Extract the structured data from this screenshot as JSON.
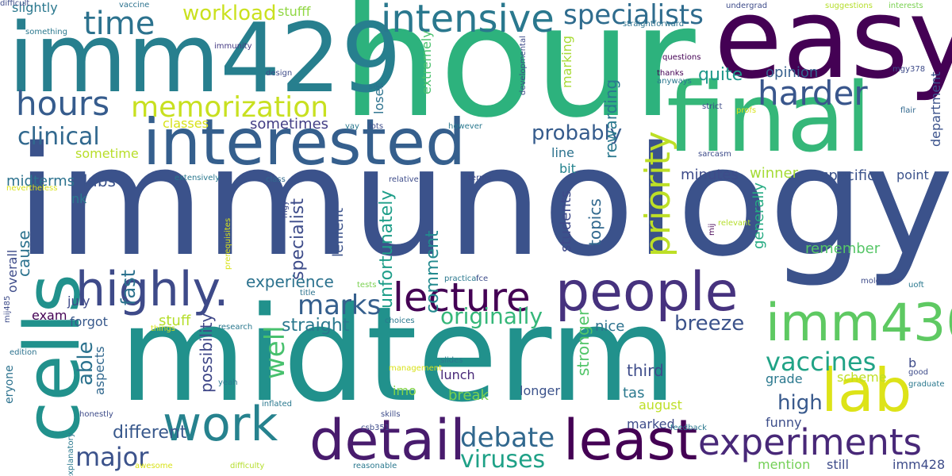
{
  "background": "#ffffff",
  "palette": {
    "dark_purple": "#440154",
    "indigo": "#46327e",
    "blue": "#365c8d",
    "steel_blue": "#3b528b",
    "teal_blue": "#277f8e",
    "teal": "#21918c",
    "sea_green": "#1fa187",
    "green": "#4ac16d",
    "light_green": "#a0da39",
    "yellow": "#d8e219"
  },
  "words": [
    {
      "text": "immunology",
      "color": "#3b528b"
    },
    {
      "text": "midterm",
      "color": "#21918c"
    },
    {
      "text": "hour",
      "color": "#2db27d"
    },
    {
      "text": "easy",
      "color": "#440154"
    },
    {
      "text": "final",
      "color": "#35b779"
    },
    {
      "text": "imm429",
      "color": "#277f8e"
    },
    {
      "text": "interested",
      "color": "#355f8d"
    },
    {
      "text": "cells",
      "color": "#21918c"
    },
    {
      "text": "lab",
      "color": "#dde318"
    },
    {
      "text": "people",
      "color": "#46327e"
    },
    {
      "text": "imm430",
      "color": "#5ec962"
    },
    {
      "text": "least",
      "color": "#440154"
    },
    {
      "text": "detail",
      "color": "#481b6d"
    },
    {
      "text": "highly.",
      "color": "#3e4a89"
    },
    {
      "text": "experiments",
      "color": "#482878"
    },
    {
      "text": "work",
      "color": "#26828e"
    },
    {
      "text": "lecture",
      "color": "#440154"
    },
    {
      "text": "intensive",
      "color": "#2a788e"
    },
    {
      "text": "hours",
      "color": "#365c8d"
    },
    {
      "text": "time",
      "color": "#2c728e"
    },
    {
      "text": "memorization",
      "color": "#c8e020"
    },
    {
      "text": "harder",
      "color": "#39568c"
    },
    {
      "text": "specialists",
      "color": "#2f6c8e"
    },
    {
      "text": "clinical",
      "color": "#31688e"
    },
    {
      "text": "priority",
      "color": "#bddf26"
    },
    {
      "text": "major",
      "color": "#3b528b"
    },
    {
      "text": "debate",
      "color": "#31688e"
    },
    {
      "text": "vaccines",
      "color": "#20a386"
    },
    {
      "text": "marks",
      "color": "#355f8d"
    },
    {
      "text": "viruses",
      "color": "#1fa187"
    },
    {
      "text": "workload",
      "color": "#cae11f"
    },
    {
      "text": "probably",
      "color": "#365c8d"
    },
    {
      "text": "well",
      "color": "#48c16e"
    },
    {
      "text": "originally",
      "color": "#35b779"
    },
    {
      "text": "breeze",
      "color": "#3b528b"
    },
    {
      "text": "able",
      "color": "#2c728e"
    },
    {
      "text": "high",
      "color": "#38598c"
    },
    {
      "text": "quite",
      "color": "#1f988b"
    },
    {
      "text": "fast",
      "color": "#2c728e"
    },
    {
      "text": "unfortunately",
      "color": "#1f9e89"
    },
    {
      "text": "specialist",
      "color": "#3e4c8a"
    },
    {
      "text": "straight",
      "color": "#2a788e"
    },
    {
      "text": "experience",
      "color": "#2c728e"
    },
    {
      "text": "different",
      "color": "#38588c"
    },
    {
      "text": "possibility",
      "color": "#3f4788"
    },
    {
      "text": "comment",
      "color": "#23898e"
    },
    {
      "text": "stronger",
      "color": "#52c569"
    },
    {
      "text": "midterms",
      "color": "#2c728e"
    },
    {
      "text": "labs",
      "color": "#3b528b"
    },
    {
      "text": "sometimes",
      "color": "#433e85"
    },
    {
      "text": "opinion",
      "color": "#355f8d"
    },
    {
      "text": "rewarding",
      "color": "#2a788e"
    },
    {
      "text": "cause",
      "color": "#2c728e"
    },
    {
      "text": "lenient",
      "color": "#3b528b"
    },
    {
      "text": "students",
      "color": "#3e4989"
    },
    {
      "text": "topics",
      "color": "#31688e"
    },
    {
      "text": "marking",
      "color": "#a8db34"
    },
    {
      "text": "specific",
      "color": "#3b528b"
    },
    {
      "text": "generally",
      "color": "#25ab82"
    },
    {
      "text": "remember",
      "color": "#56c667"
    },
    {
      "text": "winner",
      "color": "#a5db36"
    },
    {
      "text": "minutes",
      "color": "#3e4c8a"
    },
    {
      "text": "third",
      "color": "#3e4c8a"
    },
    {
      "text": "tas",
      "color": "#2a788e"
    },
    {
      "text": "grade",
      "color": "#2a788e"
    },
    {
      "text": "scheme",
      "color": "#c0df25"
    },
    {
      "text": "funny",
      "color": "#3d4e8a"
    },
    {
      "text": "mention",
      "color": "#73d056"
    },
    {
      "text": "still",
      "color": "#3e4c8a"
    },
    {
      "text": "imm428",
      "color": "#3e4c8a"
    },
    {
      "text": "department",
      "color": "#3b528b"
    },
    {
      "text": "point",
      "color": "#3b528b"
    },
    {
      "text": "lunch",
      "color": "#482878"
    },
    {
      "text": "break",
      "color": "#7ad151"
    },
    {
      "text": "longer",
      "color": "#3b528b"
    },
    {
      "text": "marked",
      "color": "#3e4c8a"
    },
    {
      "text": "august",
      "color": "#bddf26"
    },
    {
      "text": "nice",
      "color": "#2c728e"
    },
    {
      "text": "line",
      "color": "#2c728e"
    },
    {
      "text": "bit",
      "color": "#25838e"
    },
    {
      "text": "forgot",
      "color": "#38598c"
    },
    {
      "text": "exam",
      "color": "#440154"
    },
    {
      "text": "stuff",
      "color": "#b5de2b"
    },
    {
      "text": "july",
      "color": "#3e4a89"
    },
    {
      "text": "nk",
      "color": "#2a788e"
    },
    {
      "text": "overall",
      "color": "#3e4c8a"
    },
    {
      "text": "aspects",
      "color": "#31688e"
    },
    {
      "text": "eryone",
      "color": "#2c728e"
    },
    {
      "text": "slightly",
      "color": "#2a788e"
    },
    {
      "text": "stufff",
      "color": "#90d743"
    },
    {
      "text": "classes",
      "color": "#d8e219"
    },
    {
      "text": "sometime",
      "color": "#b8de29"
    },
    {
      "text": "imo",
      "color": "#86d549"
    },
    {
      "text": "loser",
      "color": "#2c728e"
    },
    {
      "text": "extremely",
      "color": "#4ac16d"
    },
    {
      "text": "b",
      "color": "#3e4c8a"
    },
    {
      "text": "vaccine",
      "color": "#2c728e"
    },
    {
      "text": "something",
      "color": "#2a788e"
    },
    {
      "text": "immunity",
      "color": "#443a83"
    },
    {
      "text": "design",
      "color": "#3e4c8a"
    },
    {
      "text": "self",
      "color": "#2c728e"
    },
    {
      "text": "developmental",
      "color": "#3e4c8a"
    },
    {
      "text": "straightforward",
      "color": "#2c728e"
    },
    {
      "text": "questions",
      "color": "#440154"
    },
    {
      "text": "thanks",
      "color": "#440154"
    },
    {
      "text": "anyways",
      "color": "#2a788e"
    },
    {
      "text": "strict",
      "color": "#3e4c8a"
    },
    {
      "text": "profs",
      "color": "#d8e219"
    },
    {
      "text": "flair",
      "color": "#31688e"
    },
    {
      "text": "mgy378",
      "color": "#3e4c8a"
    },
    {
      "text": "suggestions",
      "color": "#b5de2b"
    },
    {
      "text": "interests",
      "color": "#7ad151"
    },
    {
      "text": "undergrad",
      "color": "#3e4c8a"
    },
    {
      "text": "sarcasm",
      "color": "#3e4c8a"
    },
    {
      "text": "yay",
      "color": "#2a788e"
    },
    {
      "text": "lots",
      "color": "#3e4c8a"
    },
    {
      "text": "however",
      "color": "#2a788e"
    },
    {
      "text": "extensively",
      "color": "#2a788e"
    },
    {
      "text": "class",
      "color": "#31688e"
    },
    {
      "text": "relative",
      "color": "#3e4c8a"
    },
    {
      "text": "terms",
      "color": "#3e4c8a"
    },
    {
      "text": "nevertheless",
      "color": "#d8e219"
    },
    {
      "text": "mgy",
      "color": "#3e4c8a"
    },
    {
      "text": "prerequisites",
      "color": "#d8e219"
    },
    {
      "text": "relevant",
      "color": "#b5de2b"
    },
    {
      "text": "mij",
      "color": "#440154"
    },
    {
      "text": "tests",
      "color": "#7ad151"
    },
    {
      "text": "title",
      "color": "#2c728e"
    },
    {
      "text": "practical",
      "color": "#2a788e"
    },
    {
      "text": "fce",
      "color": "#3e4c8a"
    },
    {
      "text": "molecular",
      "color": "#3e4c8a"
    },
    {
      "text": "uoft",
      "color": "#2a788e"
    },
    {
      "text": "mij485",
      "color": "#3e4c8a"
    },
    {
      "text": "research",
      "color": "#2a788e"
    },
    {
      "text": "choices",
      "color": "#2a788e"
    },
    {
      "text": "things",
      "color": "#d8e219"
    },
    {
      "text": "edition",
      "color": "#2c728e"
    },
    {
      "text": "slides",
      "color": "#2a788e"
    },
    {
      "text": "management",
      "color": "#d8e219"
    },
    {
      "text": "yeah",
      "color": "#2a788e"
    },
    {
      "text": "good",
      "color": "#3e4c8a"
    },
    {
      "text": "graduate",
      "color": "#2a788e"
    },
    {
      "text": "inflated",
      "color": "#2a788e"
    },
    {
      "text": "honestly",
      "color": "#3e4c8a"
    },
    {
      "text": "skills",
      "color": "#3e4c8a"
    },
    {
      "text": "csb351",
      "color": "#3e4c8a"
    },
    {
      "text": "feedback",
      "color": "#2a788e"
    },
    {
      "text": "explanatory",
      "color": "#2a788e"
    },
    {
      "text": "awesome",
      "color": "#d8e219"
    },
    {
      "text": "difficulty",
      "color": "#b5de2b"
    },
    {
      "text": "reasonable",
      "color": "#2a788e"
    },
    {
      "text": "difficult",
      "color": "#3e4c8a"
    }
  ]
}
